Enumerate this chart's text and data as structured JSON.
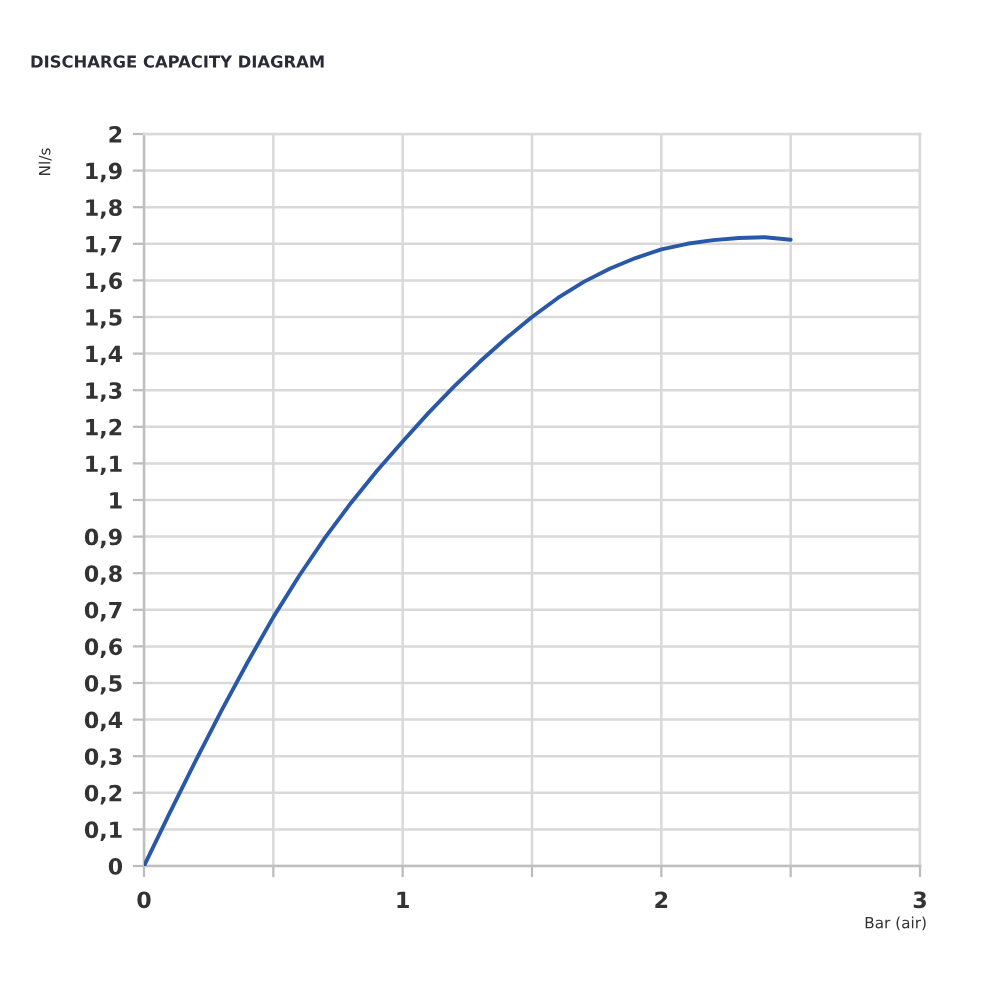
{
  "chart_data": {
    "type": "line",
    "title": "DISCHARGE CAPACITY DIAGRAM",
    "xlabel": "Bar (air)",
    "ylabel": "Nl/s",
    "x": [
      0,
      0.1,
      0.2,
      0.3,
      0.4,
      0.5,
      0.6,
      0.7,
      0.8,
      0.9,
      1.0,
      1.1,
      1.2,
      1.3,
      1.4,
      1.5,
      1.6,
      1.7,
      1.8,
      1.9,
      2.0,
      2.1,
      2.2,
      2.3,
      2.4,
      2.5
    ],
    "series": [
      {
        "color": "#2a58a8",
        "values": [
          0,
          0.146,
          0.288,
          0.425,
          0.556,
          0.68,
          0.793,
          0.897,
          0.992,
          1.079,
          1.16,
          1.238,
          1.311,
          1.379,
          1.442,
          1.5,
          1.552,
          1.596,
          1.632,
          1.661,
          1.685,
          1.7,
          1.71,
          1.716,
          1.718,
          1.711
        ]
      }
    ],
    "xlim": [
      0,
      3
    ],
    "ylim": [
      0,
      2
    ],
    "xticks": [
      0,
      {
        "value": 0.5,
        "label": null
      },
      1,
      {
        "value": 1.5,
        "label": null
      },
      2,
      {
        "value": 2.5,
        "label": null
      },
      3
    ],
    "yticks": [
      0,
      {
        "value": 0.1,
        "label": "0,1"
      },
      {
        "value": 0.2,
        "label": "0,2"
      },
      {
        "value": 0.3,
        "label": "0,3"
      },
      {
        "value": 0.4,
        "label": "0,4"
      },
      {
        "value": 0.5,
        "label": "0,5"
      },
      {
        "value": 0.6,
        "label": "0,6"
      },
      {
        "value": 0.7,
        "label": "0,7"
      },
      {
        "value": 0.8,
        "label": "0,8"
      },
      {
        "value": 0.9,
        "label": "0,9"
      },
      1,
      {
        "value": 1.1,
        "label": "1,1"
      },
      {
        "value": 1.2,
        "label": "1,2"
      },
      {
        "value": 1.3,
        "label": "1,3"
      },
      {
        "value": 1.4,
        "label": "1,4"
      },
      {
        "value": 1.5,
        "label": "1,5"
      },
      {
        "value": 1.6,
        "label": "1,6"
      },
      {
        "value": 1.7,
        "label": "1,7"
      },
      {
        "value": 1.8,
        "label": "1,8"
      },
      {
        "value": 1.9,
        "label": "1,9"
      },
      2
    ],
    "grid": true,
    "marker": "none",
    "line_style": "solid"
  }
}
